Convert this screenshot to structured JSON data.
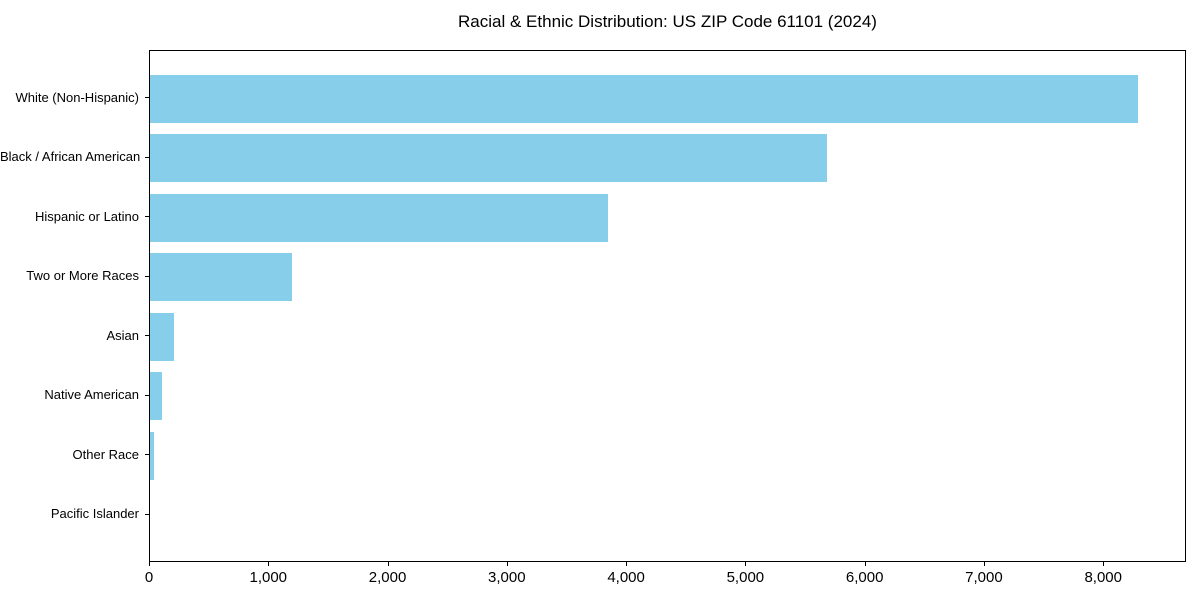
{
  "title": "Racial & Ethnic Distribution: US ZIP Code 61101 (2024)",
  "chart_data": {
    "type": "bar",
    "orientation": "horizontal",
    "title": "Racial & Ethnic Distribution: US ZIP Code 61101 (2024)",
    "xlabel": "",
    "ylabel": "",
    "categories": [
      "White (Non-Hispanic)",
      "Black / African American",
      "Hispanic or Latino",
      "Two or More Races",
      "Asian",
      "Native American",
      "Other Race",
      "Pacific Islander"
    ],
    "values": [
      8280,
      5680,
      3840,
      1190,
      205,
      100,
      35,
      0
    ],
    "xlim": [
      0,
      8694
    ],
    "x_ticks": [
      0,
      1000,
      2000,
      3000,
      4000,
      5000,
      6000,
      7000,
      8000
    ],
    "x_tick_labels": [
      "0",
      "1,000",
      "2,000",
      "3,000",
      "4,000",
      "5,000",
      "6,000",
      "7,000",
      "8,000"
    ],
    "bar_color": "#87CEEB",
    "axis_color": "#000000",
    "background_color": "#ffffff",
    "grid": false,
    "legend": null
  }
}
